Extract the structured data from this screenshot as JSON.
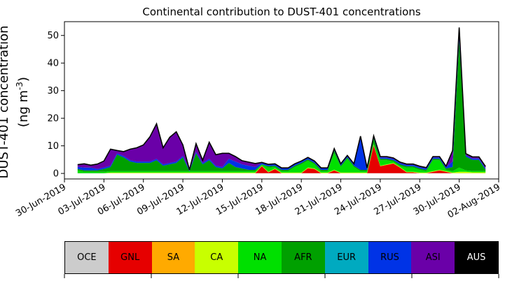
{
  "title": "Continental contribution to DUST-401 concentrations",
  "ylabel_line1": "DUST-401 concentration",
  "ylabel_line2": "(ng m",
  "ylabel_sup": "-3",
  "ylabel_close": ")",
  "colorbar": [
    {
      "label": "OCE",
      "color": "#cccccc",
      "text_color": "#000000"
    },
    {
      "label": "GNL",
      "color": "#e60000",
      "text_color": "#000000"
    },
    {
      "label": "SA",
      "color": "#ffaa00",
      "text_color": "#000000"
    },
    {
      "label": "CA",
      "color": "#c8ff00",
      "text_color": "#000000"
    },
    {
      "label": "NA",
      "color": "#00e000",
      "text_color": "#000000"
    },
    {
      "label": "AFR",
      "color": "#00a000",
      "text_color": "#000000"
    },
    {
      "label": "EUR",
      "color": "#00aac0",
      "text_color": "#000000"
    },
    {
      "label": "RUS",
      "color": "#0033e6",
      "text_color": "#000000"
    },
    {
      "label": "ASI",
      "color": "#6a00a8",
      "text_color": "#000000"
    },
    {
      "label": "AUS",
      "color": "#000000",
      "text_color": "#ffffff"
    }
  ],
  "chart_data": {
    "type": "area",
    "title": "Continental contribution to DUST-401 concentrations",
    "ylabel": "DUST-401 concentration (ng m-3)",
    "xlabel": "",
    "ylim": [
      -2,
      55
    ],
    "xlim": [
      "2019-06-30",
      "2019-08-02"
    ],
    "x_ticks": [
      "30-Jun-2019",
      "03-Jul-2019",
      "06-Jul-2019",
      "09-Jul-2019",
      "12-Jul-2019",
      "15-Jul-2019",
      "18-Jul-2019",
      "21-Jul-2019",
      "24-Jul-2019",
      "27-Jul-2019",
      "30-Jul-2019",
      "02-Aug-2019"
    ],
    "y_ticks": [
      0,
      10,
      20,
      30,
      40,
      50
    ],
    "grid": false,
    "stacked": true,
    "total_outline_color": "#000000",
    "x": [
      "2019-07-01",
      "2019-07-01 12:00",
      "2019-07-02",
      "2019-07-02 12:00",
      "2019-07-03",
      "2019-07-03 12:00",
      "2019-07-04",
      "2019-07-04 12:00",
      "2019-07-05",
      "2019-07-05 12:00",
      "2019-07-06",
      "2019-07-06 12:00",
      "2019-07-07",
      "2019-07-07 12:00",
      "2019-07-08",
      "2019-07-08 12:00",
      "2019-07-09",
      "2019-07-09 12:00",
      "2019-07-10",
      "2019-07-10 12:00",
      "2019-07-11",
      "2019-07-11 12:00",
      "2019-07-12",
      "2019-07-12 12:00",
      "2019-07-13",
      "2019-07-13 12:00",
      "2019-07-14",
      "2019-07-14 12:00",
      "2019-07-15",
      "2019-07-15 12:00",
      "2019-07-16",
      "2019-07-16 12:00",
      "2019-07-17",
      "2019-07-17 12:00",
      "2019-07-18",
      "2019-07-18 12:00",
      "2019-07-19",
      "2019-07-19 12:00",
      "2019-07-20",
      "2019-07-20 12:00",
      "2019-07-21",
      "2019-07-21 12:00",
      "2019-07-22",
      "2019-07-22 12:00",
      "2019-07-23",
      "2019-07-23 12:00",
      "2019-07-24",
      "2019-07-24 12:00",
      "2019-07-25",
      "2019-07-25 12:00",
      "2019-07-26",
      "2019-07-26 12:00",
      "2019-07-27",
      "2019-07-27 12:00",
      "2019-07-28",
      "2019-07-28 12:00",
      "2019-07-29",
      "2019-07-29 12:00",
      "2019-07-30",
      "2019-07-30 12:00",
      "2019-07-31",
      "2019-07-31 12:00",
      "2019-08-01"
    ],
    "series": [
      {
        "name": "OCE",
        "color": "#cccccc",
        "values": [
          0.1,
          0.1,
          0.1,
          0.1,
          0.1,
          0.1,
          0.1,
          0.1,
          0.1,
          0.1,
          0.1,
          0.1,
          0.1,
          0.1,
          0.1,
          0.1,
          0.1,
          0.1,
          0.1,
          0.1,
          0.1,
          0.1,
          0.1,
          0.1,
          0.1,
          0.1,
          0.1,
          0.1,
          0.1,
          0.1,
          0.1,
          0.1,
          0.1,
          0.1,
          0.1,
          0.1,
          0.1,
          0.1,
          0.1,
          0.1,
          0.1,
          0.1,
          0.1,
          0.1,
          0.1,
          0.1,
          0.1,
          0.1,
          0.1,
          0.1,
          0.1,
          0.1,
          0.1,
          0.1,
          0.1,
          0.1,
          0.1,
          0.1,
          0.1,
          0.1,
          0.1,
          0.1,
          0.1
        ]
      },
      {
        "name": "GNL",
        "color": "#e60000",
        "values": [
          0,
          0,
          0,
          0,
          0,
          0,
          0,
          0,
          0,
          0,
          0,
          0,
          0,
          0,
          0,
          0,
          0,
          0,
          0,
          0,
          0,
          0,
          0,
          0,
          0,
          0,
          0,
          0,
          2.5,
          0.3,
          1.5,
          0,
          0,
          0,
          0,
          1.8,
          1.5,
          0,
          0,
          1.0,
          0,
          0,
          0,
          0,
          0,
          10.0,
          2.5,
          3.0,
          3.5,
          2.0,
          0.3,
          0.3,
          0,
          0,
          0.5,
          1.0,
          0.5,
          0,
          0,
          0,
          0,
          0,
          0
        ]
      },
      {
        "name": "SA",
        "color": "#ffaa00",
        "values": [
          0,
          0,
          0,
          0,
          0,
          0,
          0,
          0,
          0,
          0,
          0,
          0,
          0,
          0,
          0,
          0,
          0,
          0,
          0,
          0,
          0,
          0,
          0,
          0,
          0,
          0,
          0,
          0,
          0,
          0,
          0,
          0,
          0,
          0,
          0,
          0,
          0,
          0,
          0,
          0,
          0,
          0,
          0,
          0,
          0,
          0,
          0,
          0,
          0,
          0,
          0,
          0,
          0,
          0,
          0,
          0,
          0,
          0,
          0,
          0,
          0,
          0,
          0
        ]
      },
      {
        "name": "CA",
        "color": "#c8ff00",
        "values": [
          0,
          0,
          0,
          0,
          0,
          0.2,
          0.2,
          0.2,
          0.2,
          0.2,
          0.2,
          0.2,
          0.2,
          0.2,
          0.2,
          0.2,
          0.2,
          0.2,
          0.2,
          0.2,
          0.2,
          0.2,
          0.2,
          0.2,
          0.2,
          0.2,
          0.2,
          0.2,
          0.2,
          0.2,
          0.2,
          0.2,
          0.2,
          0.2,
          0.2,
          0.2,
          0.2,
          0.2,
          0.2,
          0.2,
          0.2,
          0.2,
          0.2,
          0.2,
          0.2,
          0.2,
          0.2,
          0.2,
          0.2,
          0.2,
          0.2,
          0.2,
          0.2,
          0.2,
          0.2,
          0.2,
          0.2,
          0.2,
          0.5,
          0.5,
          0.3,
          0.3,
          0.3
        ]
      },
      {
        "name": "NA",
        "color": "#00e000",
        "values": [
          1.0,
          0.5,
          0.5,
          0.5,
          0.5,
          0.5,
          0.5,
          0.5,
          0.5,
          0.5,
          0.5,
          0.5,
          0.5,
          0.5,
          0.5,
          0.5,
          0.5,
          0.5,
          0.5,
          0.5,
          0.5,
          0.5,
          0.5,
          0.5,
          0.5,
          0.5,
          0.5,
          0.5,
          0.5,
          1.5,
          0.5,
          0.5,
          0.5,
          2.0,
          3.0,
          2.5,
          1.5,
          0.5,
          0.5,
          6.0,
          2.0,
          5.0,
          2.0,
          0.5,
          0.5,
          0.5,
          2.0,
          1.5,
          0.5,
          0.5,
          1.5,
          1.5,
          1.0,
          0.5,
          4.0,
          3.5,
          0.5,
          0.5,
          1.5,
          0.5,
          0.5,
          0.5,
          0.5
        ]
      },
      {
        "name": "AFR",
        "color": "#00a000",
        "values": [
          0.5,
          0.5,
          0.5,
          0.5,
          1.0,
          1.5,
          6.0,
          5.0,
          3.5,
          3.0,
          3.0,
          3.0,
          4.0,
          2.0,
          2.5,
          3.0,
          5.0,
          0,
          6.5,
          2.5,
          4.0,
          1.5,
          1.0,
          3.0,
          1.5,
          1.0,
          0.5,
          0.5,
          0,
          0.5,
          0.5,
          0.5,
          0.5,
          0.5,
          0.5,
          0.5,
          0.5,
          0.5,
          0.5,
          1.0,
          0.5,
          0.5,
          0.5,
          0.5,
          0.5,
          2.0,
          0.5,
          0.5,
          0.5,
          0.5,
          0.5,
          0.5,
          0.5,
          0.5,
          0.5,
          0.5,
          0.5,
          1.5,
          46.0,
          5.0,
          4.0,
          4.0,
          0.5
        ]
      },
      {
        "name": "EUR",
        "color": "#00aac0",
        "values": [
          0,
          0,
          0,
          0,
          0,
          0,
          0,
          0,
          0,
          0,
          0,
          0,
          0,
          0,
          0,
          0,
          0,
          0,
          0,
          0,
          0,
          0,
          0,
          0,
          0,
          0,
          0,
          0,
          0,
          0,
          0,
          0,
          0,
          0,
          0,
          0,
          0,
          0,
          0,
          0,
          0,
          0,
          0,
          0,
          0,
          0,
          0,
          0,
          0,
          0,
          0,
          0,
          0,
          0,
          0,
          0,
          0,
          0,
          0,
          0,
          0,
          0,
          0
        ]
      },
      {
        "name": "RUS",
        "color": "#0033e6",
        "values": [
          0.8,
          1.0,
          1.0,
          0.5,
          0.5,
          0.5,
          0.5,
          0.5,
          0.5,
          0.5,
          0.5,
          0.5,
          0.5,
          0.5,
          0.5,
          0.5,
          0.5,
          0.5,
          0.5,
          0.5,
          0.5,
          0.5,
          0.5,
          1.5,
          2.0,
          1.5,
          1.5,
          1.0,
          0.5,
          0.5,
          0.5,
          0.5,
          0.5,
          0.5,
          0.5,
          0.5,
          0.5,
          0.5,
          0.5,
          0.5,
          0.5,
          0.5,
          0.5,
          12.0,
          0.5,
          0.5,
          0.5,
          0.5,
          0.5,
          0.5,
          0.5,
          0.5,
          0.5,
          0.5,
          0.5,
          0.5,
          0.5,
          2.0,
          1.5,
          0.5,
          0.5,
          0.5,
          0.5
        ]
      },
      {
        "name": "ASI",
        "color": "#6a00a8",
        "values": [
          0.8,
          1.4,
          0.9,
          1.8,
          2.4,
          6.0,
          1.0,
          1.6,
          4.0,
          5.0,
          6.0,
          9.0,
          12.7,
          6.0,
          9.3,
          10.8,
          4.0,
          0,
          3.0,
          1.0,
          6.0,
          4.0,
          5.0,
          2.0,
          1.8,
          1.3,
          1.3,
          1.3,
          0.2,
          0.2,
          0.2,
          0.2,
          0.2,
          0.2,
          0.2,
          0.2,
          0.2,
          0.2,
          0.2,
          0.2,
          0.2,
          0.2,
          0.2,
          0.2,
          0.2,
          0.3,
          0.3,
          0.3,
          0.3,
          0.3,
          0.3,
          0.3,
          0.3,
          0.3,
          0.3,
          0.3,
          0.3,
          4.0,
          3.3,
          0.6,
          0.6,
          0.6,
          0.6
        ]
      },
      {
        "name": "AUS",
        "color": "#000000",
        "values": [
          0,
          0,
          0,
          0,
          0,
          0,
          0,
          0,
          0,
          0,
          0,
          0,
          0,
          0,
          0,
          0,
          0,
          0,
          0,
          0,
          0,
          0,
          0,
          0,
          0,
          0,
          0,
          0,
          0,
          0,
          0,
          0,
          0,
          0,
          0,
          0,
          0,
          0,
          0,
          0,
          0,
          0,
          0,
          0,
          0,
          0,
          0,
          0,
          0,
          0,
          0,
          0,
          0,
          0,
          0,
          0,
          0,
          0,
          0,
          0,
          0,
          0,
          0
        ]
      }
    ]
  }
}
